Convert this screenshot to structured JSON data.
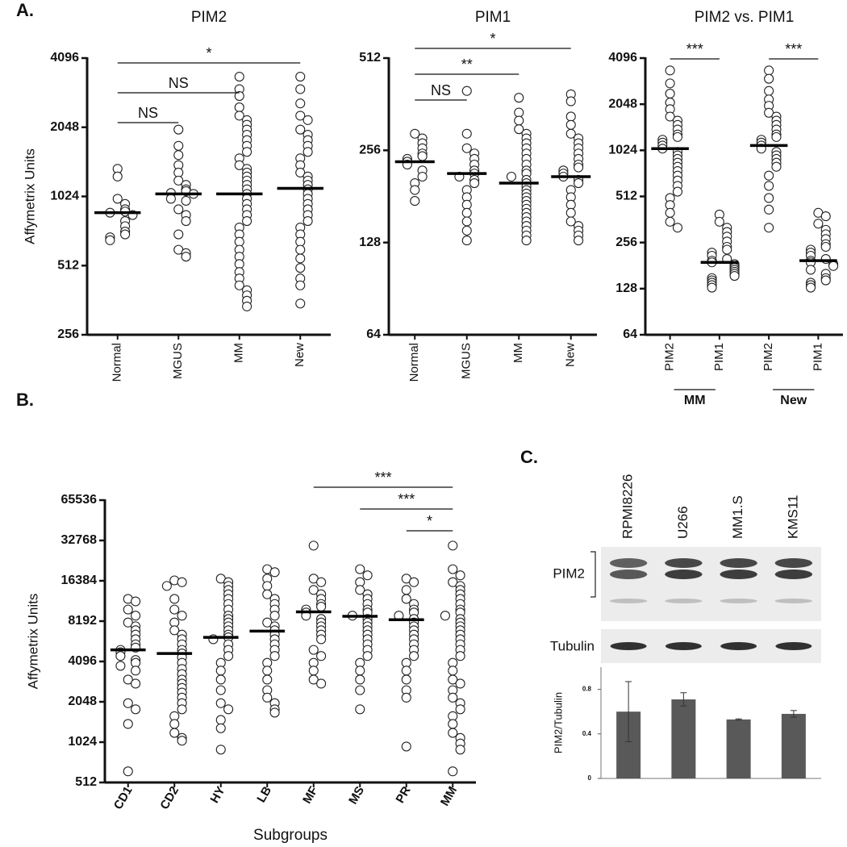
{
  "chart_data": [
    {
      "type": "dot",
      "panel_label": "A.",
      "title": "PIM2",
      "ylabel": "Affymetrix Units",
      "log_base": 2,
      "categories": [
        "Normal",
        "MGUS",
        "MM",
        "New"
      ],
      "ylim": [
        256,
        4096
      ],
      "yticks": [
        256,
        512,
        1024,
        2048,
        4096
      ],
      "values": [
        [
          1350,
          1250,
          1000,
          950,
          900,
          880,
          870,
          850,
          800,
          760,
          720,
          700,
          680,
          660
        ],
        [
          2000,
          1700,
          1550,
          1400,
          1300,
          1200,
          1150,
          1100,
          1080,
          1060,
          1050,
          1000,
          980,
          900,
          850,
          800,
          700,
          600,
          580,
          560
        ],
        [
          3400,
          3000,
          2800,
          2500,
          2300,
          2200,
          2100,
          2000,
          1900,
          1800,
          1700,
          1600,
          1500,
          1400,
          1350,
          1300,
          1250,
          1200,
          1150,
          1100,
          1050,
          1000,
          950,
          900,
          850,
          800,
          750,
          700,
          650,
          600,
          560,
          520,
          480,
          450,
          420,
          400,
          380,
          360,
          340
        ],
        [
          3400,
          3000,
          2600,
          2300,
          2200,
          2000,
          1900,
          1800,
          1700,
          1600,
          1500,
          1400,
          1300,
          1250,
          1200,
          1150,
          1100,
          1050,
          1000,
          950,
          900,
          850,
          800,
          750,
          700,
          650,
          600,
          550,
          500,
          450,
          420,
          350
        ]
      ],
      "medians": [
        870,
        1050,
        1050,
        1110
      ],
      "brackets": [
        {
          "from": 0,
          "to": 3,
          "label": "*"
        },
        {
          "from": 0,
          "to": 2,
          "label": "NS"
        },
        {
          "from": 0,
          "to": 1,
          "label": "NS"
        }
      ]
    },
    {
      "type": "dot",
      "title": "PIM1",
      "log_base": 2,
      "categories": [
        "Normal",
        "MGUS",
        "MM",
        "New"
      ],
      "ylim": [
        64,
        512
      ],
      "yticks": [
        64,
        128,
        256,
        512
      ],
      "values": [
        [
          290,
          280,
          270,
          260,
          250,
          245,
          240,
          235,
          230,
          220,
          210,
          200,
          190,
          175
        ],
        [
          400,
          290,
          260,
          250,
          240,
          230,
          220,
          215,
          210,
          205,
          200,
          190,
          180,
          170,
          160,
          150,
          140,
          130
        ],
        [
          380,
          340,
          320,
          300,
          290,
          280,
          270,
          260,
          250,
          240,
          230,
          220,
          215,
          210,
          205,
          200,
          195,
          190,
          185,
          180,
          175,
          170,
          165,
          160,
          155,
          150,
          145,
          140,
          135,
          130
        ],
        [
          390,
          370,
          330,
          310,
          290,
          280,
          270,
          260,
          250,
          240,
          230,
          225,
          220,
          215,
          210,
          205,
          200,
          190,
          180,
          170,
          160,
          150,
          145,
          140,
          135,
          130
        ]
      ],
      "medians": [
        235,
        215,
        200,
        210
      ],
      "brackets": [
        {
          "from": 0,
          "to": 3,
          "label": "*"
        },
        {
          "from": 0,
          "to": 2,
          "label": "**"
        },
        {
          "from": 0,
          "to": 1,
          "label": "NS"
        }
      ]
    },
    {
      "type": "dot",
      "title": "PIM2 vs. PIM1",
      "log_base": 2,
      "categories": [
        "PIM2",
        "PIM1",
        "PIM2",
        "PIM1"
      ],
      "groups": [
        {
          "label": "MM",
          "from": 0,
          "to": 1
        },
        {
          "label": "New",
          "from": 2,
          "to": 3
        }
      ],
      "ylim": [
        64,
        4096
      ],
      "yticks": [
        64,
        128,
        256,
        512,
        1024,
        2048,
        4096
      ],
      "values": [
        [
          3400,
          2800,
          2400,
          2100,
          1900,
          1700,
          1600,
          1500,
          1400,
          1300,
          1250,
          1200,
          1150,
          1100,
          1050,
          1000,
          950,
          900,
          850,
          800,
          750,
          700,
          650,
          600,
          550,
          500,
          450,
          400,
          350,
          320
        ],
        [
          390,
          350,
          320,
          300,
          280,
          260,
          240,
          230,
          220,
          210,
          200,
          195,
          190,
          185,
          180,
          175,
          170,
          165,
          160,
          155,
          150,
          145,
          140,
          135,
          130
        ],
        [
          3400,
          3000,
          2500,
          2200,
          2000,
          1800,
          1700,
          1600,
          1500,
          1400,
          1300,
          1250,
          1200,
          1150,
          1100,
          1050,
          1000,
          950,
          900,
          850,
          800,
          700,
          600,
          500,
          420,
          320
        ],
        [
          400,
          380,
          340,
          310,
          290,
          270,
          250,
          240,
          230,
          220,
          210,
          200,
          195,
          190,
          185,
          180,
          170,
          160,
          150,
          145,
          140,
          135,
          130
        ]
      ],
      "medians": [
        1050,
        190,
        1100,
        195
      ],
      "brackets": [
        {
          "from": 0,
          "to": 1,
          "label": "***"
        },
        {
          "from": 2,
          "to": 3,
          "label": "***"
        }
      ]
    },
    {
      "type": "dot",
      "panel_label": "B.",
      "ylabel": "Affymetrix Units",
      "xlabel": "Subgroups",
      "log_base": 2,
      "categories": [
        "CD1",
        "CD2",
        "HY",
        "LB",
        "MF",
        "MS",
        "PR",
        "MM"
      ],
      "ylim": [
        512,
        65536
      ],
      "yticks": [
        512,
        1024,
        2048,
        4096,
        8192,
        16384,
        32768,
        65536
      ],
      "values": [
        [
          12000,
          11500,
          10000,
          9000,
          8000,
          7500,
          7000,
          6500,
          6000,
          5500,
          5200,
          5000,
          4800,
          4500,
          4200,
          4000,
          3800,
          3500,
          3000,
          2800,
          2000,
          1800,
          1400,
          620
        ],
        [
          16500,
          16000,
          15000,
          12000,
          10000,
          9000,
          8000,
          7000,
          6500,
          6000,
          5500,
          5000,
          4700,
          4400,
          4000,
          3600,
          3300,
          3000,
          2800,
          2600,
          2400,
          2200,
          2000,
          1800,
          1600,
          1400,
          1200,
          1100,
          1050
        ],
        [
          17000,
          16000,
          15000,
          14000,
          13000,
          12000,
          11000,
          10000,
          9000,
          8500,
          8000,
          7500,
          7000,
          6500,
          6200,
          6000,
          5500,
          5000,
          4500,
          4000,
          3500,
          3000,
          2500,
          2000,
          1800,
          1500,
          1300,
          900
        ],
        [
          20000,
          19000,
          17000,
          15000,
          13000,
          12000,
          11000,
          10000,
          9000,
          8000,
          7500,
          7000,
          6500,
          6000,
          5500,
          5000,
          4500,
          4000,
          3500,
          3000,
          2500,
          2200,
          2000,
          1800,
          1700
        ],
        [
          30000,
          17000,
          16000,
          14000,
          13000,
          12000,
          11000,
          10500,
          10000,
          9500,
          9000,
          8500,
          8000,
          7500,
          7000,
          6500,
          6000,
          5000,
          4500,
          4000,
          3500,
          3000,
          2800
        ],
        [
          20000,
          18000,
          16000,
          14000,
          13000,
          12000,
          11000,
          10000,
          9500,
          9000,
          8500,
          8000,
          7500,
          7000,
          6500,
          6000,
          5500,
          5000,
          4500,
          4000,
          3500,
          3000,
          2500,
          1800
        ],
        [
          17000,
          16000,
          14000,
          12000,
          11000,
          10000,
          9500,
          9000,
          8500,
          8000,
          7500,
          7000,
          6500,
          6000,
          5500,
          5000,
          4500,
          4000,
          3500,
          3000,
          2500,
          2200,
          950
        ],
        [
          30000,
          20000,
          18000,
          16000,
          15000,
          14000,
          13000,
          12000,
          11000,
          10000,
          9500,
          9000,
          8500,
          8000,
          7500,
          7000,
          6500,
          6000,
          5500,
          5000,
          4500,
          4000,
          3500,
          3000,
          2800,
          2500,
          2200,
          2000,
          1800,
          1600,
          1400,
          1200,
          1100,
          1000,
          900,
          620
        ]
      ],
      "medians": [
        5000,
        4700,
        6200,
        6900,
        9600,
        8900,
        8400,
        null
      ],
      "brackets": [
        {
          "from": 4,
          "to": 7,
          "label": "***"
        },
        {
          "from": 5,
          "to": 7,
          "label": "***"
        },
        {
          "from": 6,
          "to": 7,
          "label": "*"
        }
      ]
    },
    {
      "type": "blot",
      "panel_label": "C.",
      "lanes": [
        "RPMI8226",
        "U266",
        "MM1.S",
        "KMS11"
      ],
      "bands": [
        "PIM2",
        "Tubulin"
      ]
    },
    {
      "type": "bar",
      "ylabel": "PIM2/Tubulin",
      "categories": [
        null,
        null,
        null,
        null
      ],
      "values": [
        0.6,
        0.71,
        0.53,
        0.58
      ],
      "errors": [
        0.27,
        0.06,
        0.005,
        0.03
      ],
      "color": "#595959",
      "ylim": [
        0,
        1
      ],
      "yticks": [
        0,
        0.4,
        0.8
      ]
    }
  ]
}
